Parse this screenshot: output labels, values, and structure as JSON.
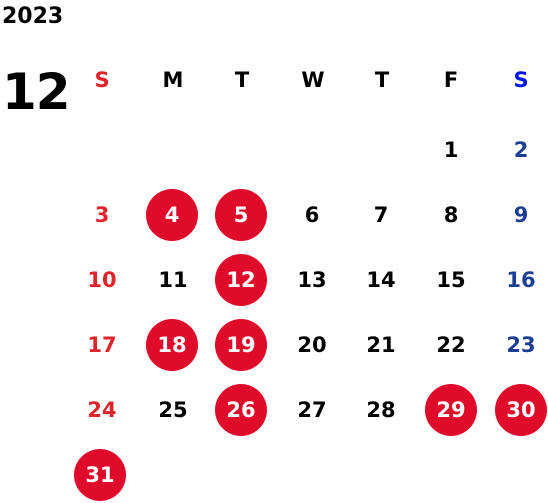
{
  "calendar": {
    "year": "2023",
    "month": "12",
    "weekdays": [
      "S",
      "M",
      "T",
      "W",
      "T",
      "F",
      "S"
    ],
    "colors": {
      "sunday": "#e0242b",
      "saturday": "#1c3f94",
      "saturday_header": "#0015e6",
      "holiday_circle": "#e00a2b",
      "weekday": "#000000"
    },
    "weeks": [
      [
        "",
        "",
        "",
        "",
        "",
        "1",
        "2"
      ],
      [
        "3",
        "4",
        "5",
        "6",
        "7",
        "8",
        "9"
      ],
      [
        "10",
        "11",
        "12",
        "13",
        "14",
        "15",
        "16"
      ],
      [
        "17",
        "18",
        "19",
        "20",
        "21",
        "22",
        "23"
      ],
      [
        "24",
        "25",
        "26",
        "27",
        "28",
        "29",
        "30"
      ],
      [
        "31",
        "",
        "",
        "",
        "",
        "",
        ""
      ]
    ],
    "highlighted_days": [
      "4",
      "5",
      "12",
      "18",
      "19",
      "26",
      "29",
      "30",
      "31"
    ]
  }
}
